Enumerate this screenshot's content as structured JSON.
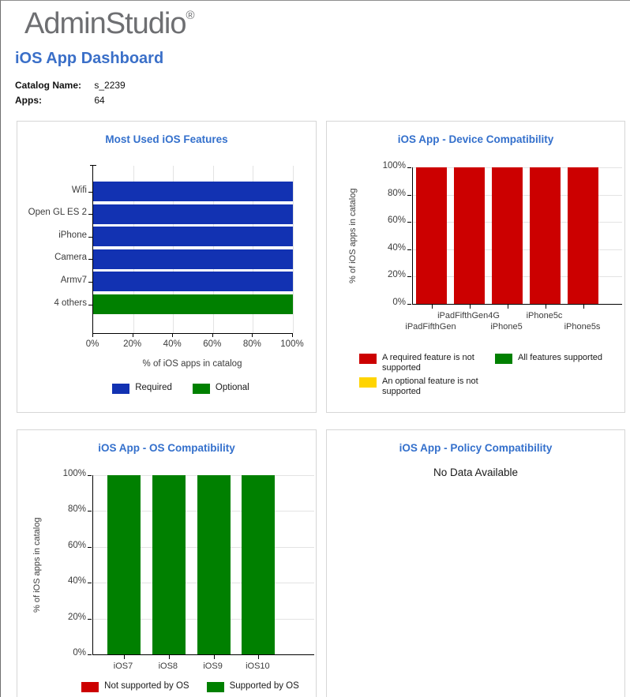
{
  "header": {
    "logo": "AdminStudio",
    "logo_reg": "®",
    "title": "iOS App Dashboard",
    "catalog_name_label": "Catalog Name:",
    "catalog_name_value": "s_2239",
    "apps_label": "Apps:",
    "apps_value": "64"
  },
  "colors": {
    "blue": "#1232b2",
    "red": "#cc0000",
    "green": "#008000",
    "yellow": "#ffd400",
    "title_blue": "#3470cc"
  },
  "chart_data": [
    {
      "id": "features",
      "type": "bar",
      "orientation": "horizontal",
      "title": "Most Used iOS Features",
      "categories": [
        "Wifi",
        "Open GL ES 2",
        "iPhone",
        "Camera",
        "Armv7",
        "4 others"
      ],
      "values": [
        100,
        100,
        100,
        100,
        100,
        100
      ],
      "series_colors": [
        "blue",
        "blue",
        "blue",
        "blue",
        "blue",
        "green"
      ],
      "xlabel": "% of iOS apps in catalog",
      "x_ticks": [
        "0%",
        "20%",
        "40%",
        "60%",
        "80%",
        "100%"
      ],
      "xlim": [
        0,
        100
      ],
      "grid": "vertical",
      "legend_position": "bottom",
      "legend": [
        {
          "label": "Required",
          "color": "blue"
        },
        {
          "label": "Optional",
          "color": "green"
        }
      ]
    },
    {
      "id": "device",
      "type": "bar",
      "orientation": "vertical",
      "title": "iOS App - Device Compatibility",
      "categories": [
        "iPadFifthGen",
        "iPadFifthGen4G",
        "iPhone5",
        "iPhone5c",
        "iPhone5s"
      ],
      "values": [
        100,
        100,
        100,
        100,
        100
      ],
      "series_colors": [
        "red",
        "red",
        "red",
        "red",
        "red"
      ],
      "ylabel": "% of iOS apps in catalog",
      "y_ticks": [
        "0%",
        "20%",
        "40%",
        "60%",
        "80%",
        "100%"
      ],
      "ylim": [
        0,
        100
      ],
      "grid": "horizontal",
      "legend_position": "bottom",
      "legend": [
        {
          "label": "A required feature is not supported",
          "color": "red"
        },
        {
          "label": "An optional feature is not supported",
          "color": "yellow"
        },
        {
          "label": "All features supported",
          "color": "green"
        }
      ]
    },
    {
      "id": "os",
      "type": "bar",
      "orientation": "vertical",
      "title": "iOS App - OS Compatibility",
      "categories": [
        "iOS7",
        "iOS8",
        "iOS9",
        "iOS10"
      ],
      "values": [
        100,
        100,
        100,
        100
      ],
      "series_colors": [
        "green",
        "green",
        "green",
        "green"
      ],
      "ylabel": "% of iOS apps in catalog",
      "y_ticks": [
        "0%",
        "20%",
        "40%",
        "60%",
        "80%",
        "100%"
      ],
      "ylim": [
        0,
        100
      ],
      "grid": "horizontal",
      "legend_position": "bottom",
      "legend": [
        {
          "label": "Not supported by OS",
          "color": "red"
        },
        {
          "label": "Supported by OS",
          "color": "green"
        }
      ]
    },
    {
      "id": "policy",
      "type": "none",
      "title": "iOS App - Policy Compatibility",
      "no_data_text": "No Data Available"
    }
  ]
}
